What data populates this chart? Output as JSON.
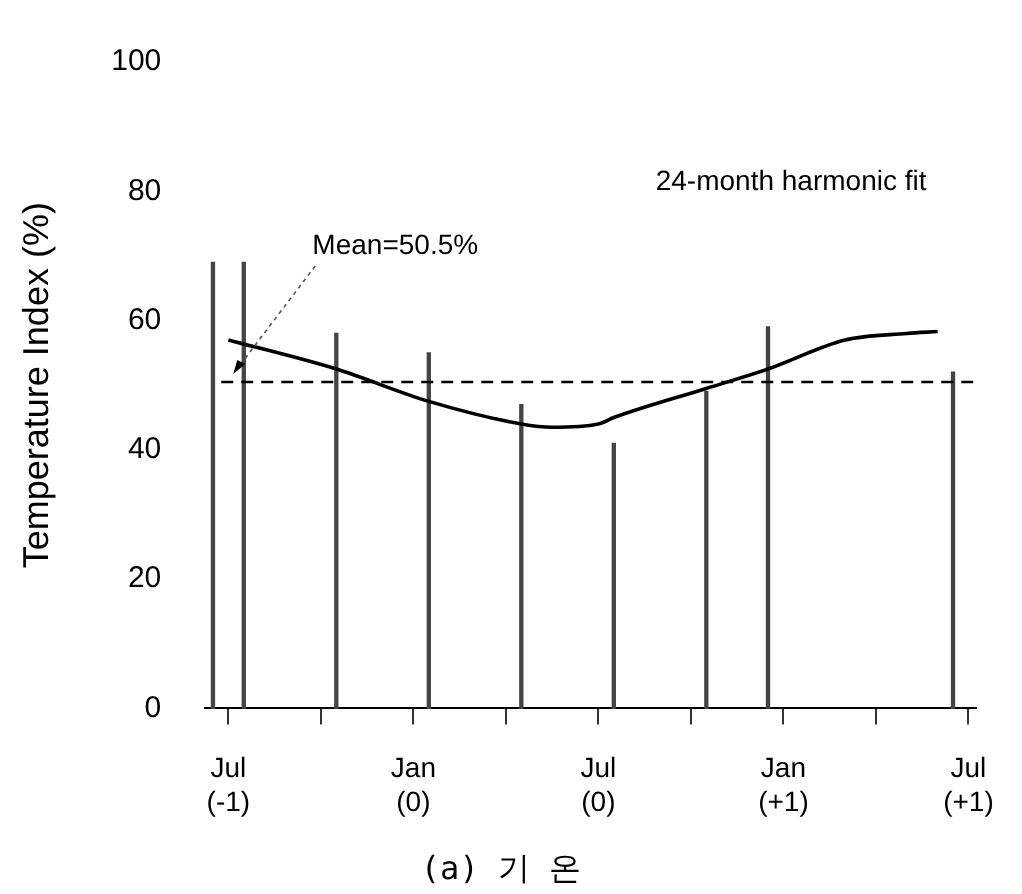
{
  "chart_data": {
    "type": "bar",
    "title": "(a) 기 온",
    "ylabel": "Temperature Index (%)",
    "categories": [
      null,
      "Jul\n(-1)",
      null,
      null,
      null,
      null,
      null,
      null,
      null,
      null,
      null,
      null,
      null,
      "Jan\n(0)",
      null,
      null,
      null,
      null,
      null,
      null,
      null,
      null,
      null,
      null,
      null,
      "Jul\n(0)",
      null,
      null,
      null,
      null,
      null,
      null,
      null,
      null,
      null,
      null,
      null,
      "Jan\n(+1)",
      null,
      null,
      null,
      null,
      null,
      null,
      null,
      null,
      null,
      null,
      null,
      "Jul\n(+1)"
    ],
    "ylim": [
      0,
      100
    ],
    "yticks": [
      0,
      20,
      40,
      60,
      80,
      100
    ],
    "grid": false,
    "legend": false,
    "series": [
      {
        "color": "#444444",
        "values": [
          69,
          null,
          69,
          null,
          null,
          null,
          null,
          null,
          58,
          null,
          null,
          null,
          null,
          null,
          55,
          null,
          null,
          null,
          null,
          null,
          47,
          null,
          null,
          null,
          null,
          null,
          41,
          null,
          null,
          null,
          null,
          null,
          49,
          null,
          null,
          null,
          59,
          null,
          null,
          null,
          null,
          null,
          null,
          null,
          null,
          null,
          null,
          null,
          52,
          null
        ]
      },
      {
        "type": "line",
        "color": "#000000",
        "marker": "none",
        "values": [
          null,
          57,
          null,
          null,
          null,
          null,
          null,
          null,
          52.5,
          null,
          null,
          null,
          null,
          null,
          47.5,
          null,
          null,
          null,
          null,
          null,
          44,
          null,
          43.5,
          null,
          null,
          44,
          45,
          null,
          null,
          null,
          null,
          null,
          49.5,
          null,
          null,
          null,
          52.5,
          null,
          null,
          null,
          null,
          57,
          null,
          null,
          null,
          58,
          null,
          58.3,
          null,
          null
        ]
      }
    ],
    "ref_lines": [
      {
        "axis": "y",
        "value": 50.5,
        "label": "Mean=50.5%",
        "line_style": "dashed",
        "color": "#000000"
      }
    ],
    "annotations": [
      "24-month harmonic fit"
    ]
  }
}
